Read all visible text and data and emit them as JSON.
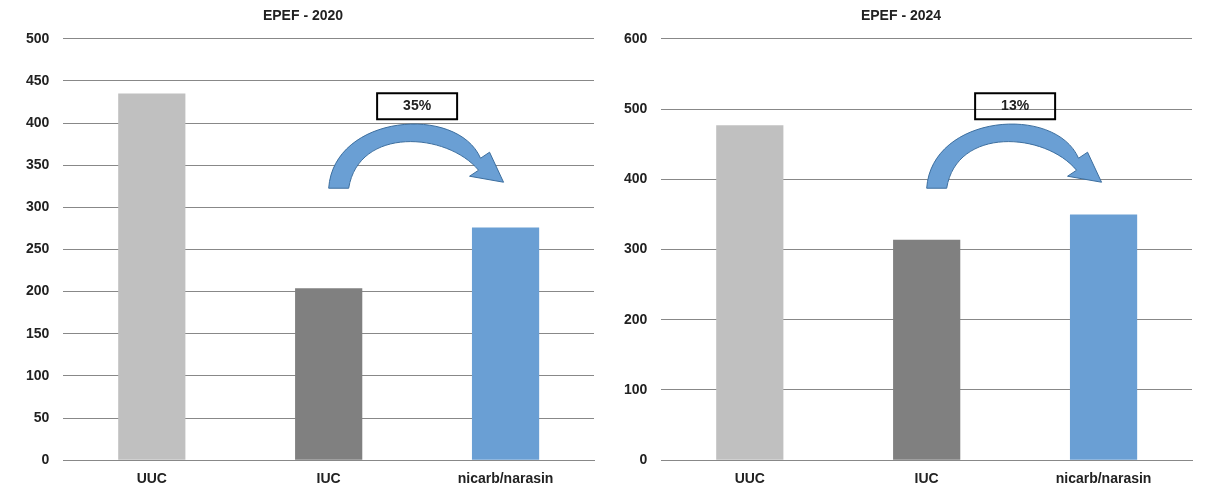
{
  "chart_data": [
    {
      "type": "bar",
      "title": "EPEF - 2020",
      "categories": [
        "UUC",
        "IUC",
        "nicarb/narasin"
      ],
      "values": [
        435,
        204,
        276
      ],
      "colors": [
        "#c0c0c0",
        "#808080",
        "#6a9fd4"
      ],
      "ylim": [
        0,
        500
      ],
      "yticks": [
        0,
        50,
        100,
        150,
        200,
        250,
        300,
        350,
        400,
        450,
        500
      ],
      "grid": "y",
      "annotations": [
        "35%"
      ]
    },
    {
      "type": "bar",
      "title": "EPEF - 2024",
      "categories": [
        "UUC",
        "IUC",
        "nicarb/narasin"
      ],
      "values": [
        477,
        314,
        350
      ],
      "colors": [
        "#c0c0c0",
        "#808080",
        "#6a9fd4"
      ],
      "ylim": [
        0,
        600
      ],
      "yticks": [
        0,
        100,
        200,
        300,
        400,
        500,
        600
      ],
      "grid": "y",
      "annotations": [
        "13%"
      ]
    }
  ]
}
